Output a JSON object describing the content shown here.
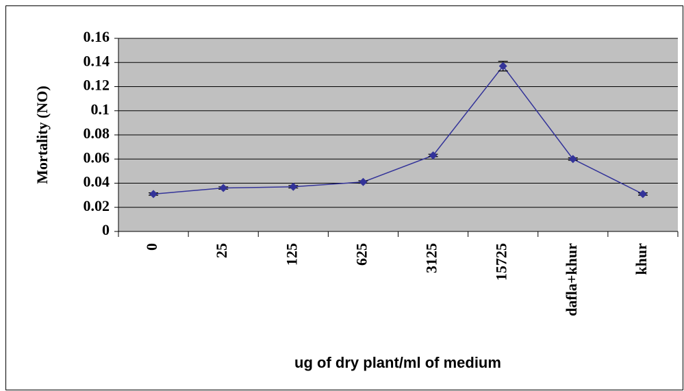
{
  "chart_data": {
    "type": "line",
    "x_label": "ug of dry plant/ml of medium",
    "y_label": "Mortality (NO)",
    "categories": [
      "0",
      "25",
      "125",
      "625",
      "3125",
      "15725",
      "dafla+khur",
      "khur"
    ],
    "series": [
      {
        "color": "#333399",
        "values": [
          0.031,
          0.036,
          0.037,
          0.041,
          0.063,
          0.137,
          0.06,
          0.031
        ],
        "errors": [
          0.001,
          0.001,
          0.001,
          0.001,
          0.001,
          0.004,
          0.001,
          0.001
        ]
      }
    ],
    "ylim": [
      0,
      0.16
    ],
    "yticks": [
      0,
      0.02,
      0.04,
      0.06,
      0.08,
      0.1,
      0.12,
      0.14,
      0.16
    ],
    "grid": true
  }
}
